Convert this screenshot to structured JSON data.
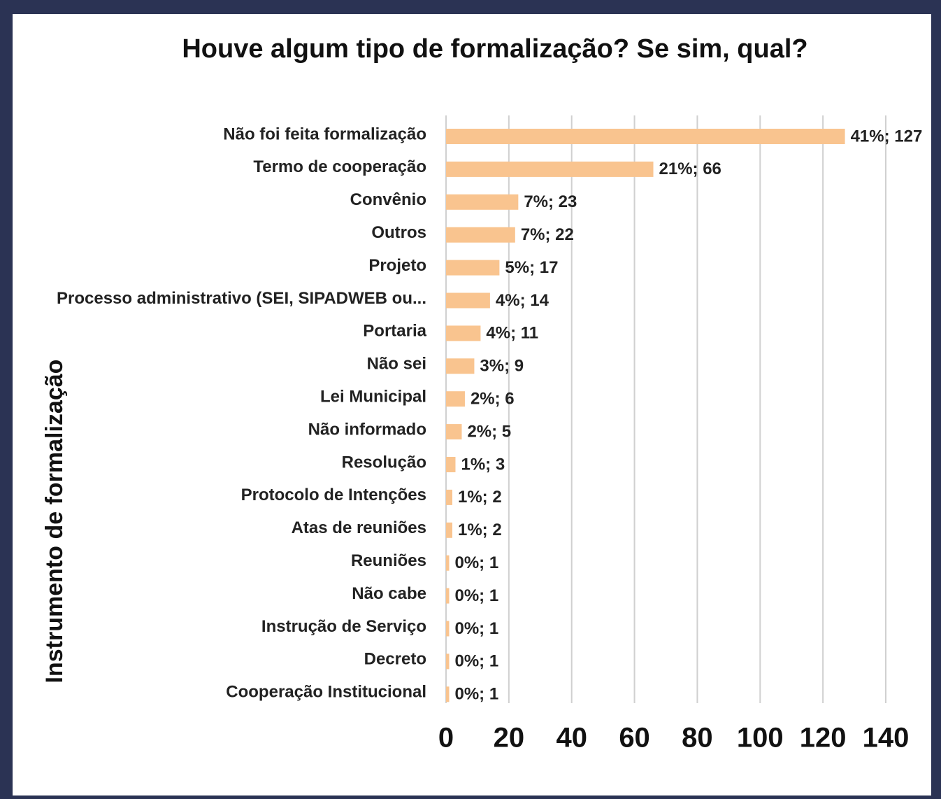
{
  "chart_data": {
    "type": "bar",
    "orientation": "horizontal",
    "title": "Houve algum tipo de formalização? Se sim, qual?",
    "y_label": "Instrumento de formalização",
    "categories": [
      "Não foi feita formalização",
      "Termo de cooperação",
      "Convênio",
      "Outros",
      "Projeto",
      "Processo administrativo (SEI, SIPADWEB ou...",
      "Portaria",
      "Não sei",
      "Lei Municipal",
      "Não informado",
      "Resolução",
      "Protocolo de Intenções",
      "Atas de reuniões",
      "Reuniões",
      "Não cabe",
      "Instrução de Serviço",
      "Decreto",
      "Cooperação Institucional"
    ],
    "values": [
      127,
      66,
      23,
      22,
      17,
      14,
      11,
      9,
      6,
      5,
      3,
      2,
      2,
      1,
      1,
      1,
      1,
      1
    ],
    "value_labels": [
      "41%; 127",
      "21%; 66",
      "7%; 23",
      "7%; 22",
      "5%; 17",
      "4%; 14",
      "4%; 11",
      "3%; 9",
      "2%; 6",
      "2%; 5",
      "1%; 3",
      "1%; 2",
      "1%; 2",
      "0%; 1",
      "0%; 1",
      "0%; 1",
      "0%; 1",
      "0%; 1"
    ],
    "color": "#f9c48f",
    "xlim": [
      0,
      140
    ],
    "xticks": [
      0,
      20,
      40,
      60,
      80,
      100,
      120,
      140
    ],
    "grid": true
  }
}
